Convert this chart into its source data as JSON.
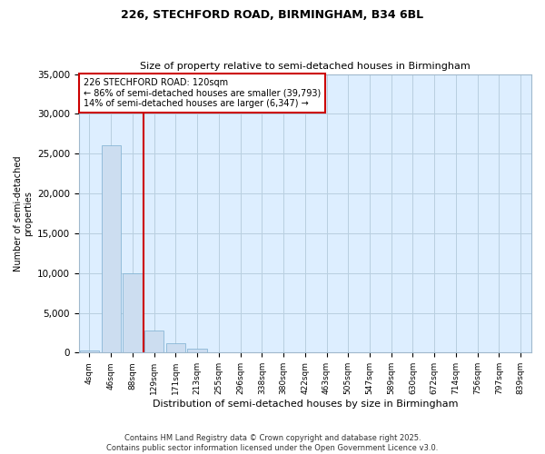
{
  "title1": "226, STECHFORD ROAD, BIRMINGHAM, B34 6BL",
  "title2": "Size of property relative to semi-detached houses in Birmingham",
  "xlabel": "Distribution of semi-detached houses by size in Birmingham",
  "ylabel": "Number of semi-detached\nproperties",
  "categories": [
    "4sqm",
    "46sqm",
    "88sqm",
    "129sqm",
    "171sqm",
    "213sqm",
    "255sqm",
    "296sqm",
    "338sqm",
    "380sqm",
    "422sqm",
    "463sqm",
    "505sqm",
    "547sqm",
    "589sqm",
    "630sqm",
    "672sqm",
    "714sqm",
    "756sqm",
    "797sqm",
    "839sqm"
  ],
  "values": [
    300,
    26000,
    10000,
    2800,
    1200,
    500,
    0,
    0,
    0,
    0,
    0,
    0,
    0,
    0,
    0,
    0,
    0,
    0,
    0,
    0,
    0
  ],
  "bar_color": "#ccddf0",
  "bar_edge_color": "#7aaed0",
  "vline_color": "#cc0000",
  "annotation_text": "226 STECHFORD ROAD: 120sqm\n← 86% of semi-detached houses are smaller (39,793)\n14% of semi-detached houses are larger (6,347) →",
  "annotation_box_color": "white",
  "annotation_box_edge_color": "#cc0000",
  "ylim": [
    0,
    35000
  ],
  "yticks": [
    0,
    5000,
    10000,
    15000,
    20000,
    25000,
    30000,
    35000
  ],
  "ax_bg_color": "#ddeeff",
  "background_color": "white",
  "grid_color": "#b8cfe0",
  "footer1": "Contains HM Land Registry data © Crown copyright and database right 2025.",
  "footer2": "Contains public sector information licensed under the Open Government Licence v3.0."
}
